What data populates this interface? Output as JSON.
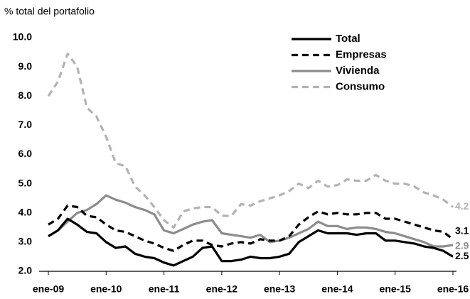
{
  "chart_data": {
    "type": "line",
    "title": "% total del portafolio",
    "categories": [
      "ene-09",
      null,
      null,
      null,
      null,
      null,
      "ene-10",
      null,
      null,
      null,
      null,
      null,
      "ene-11",
      null,
      null,
      null,
      null,
      null,
      "ene-12",
      null,
      null,
      null,
      null,
      null,
      "ene-13",
      null,
      null,
      null,
      null,
      null,
      "ene-14",
      null,
      null,
      null,
      null,
      null,
      "ene-15",
      null,
      null,
      null,
      null,
      null,
      "ene-16"
    ],
    "ylim": [
      2,
      10
    ],
    "yticks": [
      {
        "value": 2,
        "label": "2.0"
      },
      {
        "value": 3,
        "label": "3.0"
      },
      {
        "value": 4,
        "label": "4.0"
      },
      {
        "value": 5,
        "label": "5.0"
      },
      {
        "value": 6,
        "label": "6.0"
      },
      {
        "value": 7,
        "label": "7.0"
      },
      {
        "value": 8,
        "label": "8.0"
      },
      {
        "value": 9,
        "label": "9.0"
      },
      {
        "value": 10,
        "label": "10.0"
      }
    ],
    "grid": false,
    "legend": "upper right",
    "series": [
      {
        "name": "Total",
        "color": "#000000",
        "dash": false,
        "values": [
          3.2,
          3.4,
          3.8,
          3.6,
          3.35,
          3.3,
          3.0,
          2.8,
          2.85,
          2.6,
          2.5,
          2.45,
          2.3,
          2.2,
          2.35,
          2.5,
          2.8,
          2.85,
          2.35,
          2.35,
          2.4,
          2.5,
          2.45,
          2.45,
          2.5,
          2.6,
          3.0,
          3.2,
          3.4,
          3.3,
          3.3,
          3.3,
          3.25,
          3.3,
          3.3,
          3.05,
          3.05,
          3.0,
          2.95,
          2.85,
          2.8,
          2.7,
          2.5
        ]
      },
      {
        "name": "Empresas",
        "color": "#000000",
        "dash": true,
        "values": [
          3.6,
          3.8,
          4.25,
          4.2,
          3.9,
          3.85,
          3.6,
          3.4,
          3.35,
          3.2,
          3.05,
          2.95,
          2.8,
          2.7,
          2.9,
          3.05,
          3.05,
          2.9,
          2.85,
          2.95,
          3.0,
          2.95,
          3.1,
          3.05,
          3.05,
          3.2,
          3.6,
          3.85,
          4.05,
          3.95,
          4.0,
          3.95,
          3.95,
          4.0,
          4.0,
          3.8,
          3.8,
          3.7,
          3.6,
          3.5,
          3.4,
          3.35,
          3.1
        ]
      },
      {
        "name": "Vivienda",
        "color": "#8c8c8c",
        "dash": false,
        "values": [
          3.2,
          3.4,
          3.7,
          4.0,
          4.1,
          4.3,
          4.6,
          4.45,
          4.35,
          4.2,
          4.1,
          3.95,
          3.4,
          3.3,
          3.45,
          3.6,
          3.7,
          3.75,
          3.3,
          3.25,
          3.2,
          3.15,
          3.25,
          3.0,
          3.05,
          3.15,
          3.3,
          3.45,
          3.7,
          3.55,
          3.55,
          3.45,
          3.5,
          3.5,
          3.45,
          3.35,
          3.3,
          3.2,
          3.1,
          3.0,
          2.85,
          2.85,
          2.9
        ]
      },
      {
        "name": "Consumo",
        "color": "#b3b3b3",
        "dash": true,
        "values": [
          8.0,
          8.5,
          9.45,
          9.0,
          7.6,
          7.3,
          6.6,
          5.7,
          5.6,
          4.9,
          4.6,
          4.2,
          3.75,
          3.5,
          4.05,
          4.15,
          4.2,
          4.2,
          3.9,
          3.9,
          4.3,
          4.25,
          4.4,
          4.5,
          4.6,
          4.75,
          5.0,
          4.85,
          5.1,
          4.9,
          4.95,
          5.15,
          5.1,
          5.1,
          5.3,
          5.1,
          5.0,
          5.0,
          4.9,
          4.7,
          4.6,
          4.45,
          4.2
        ]
      }
    ]
  }
}
